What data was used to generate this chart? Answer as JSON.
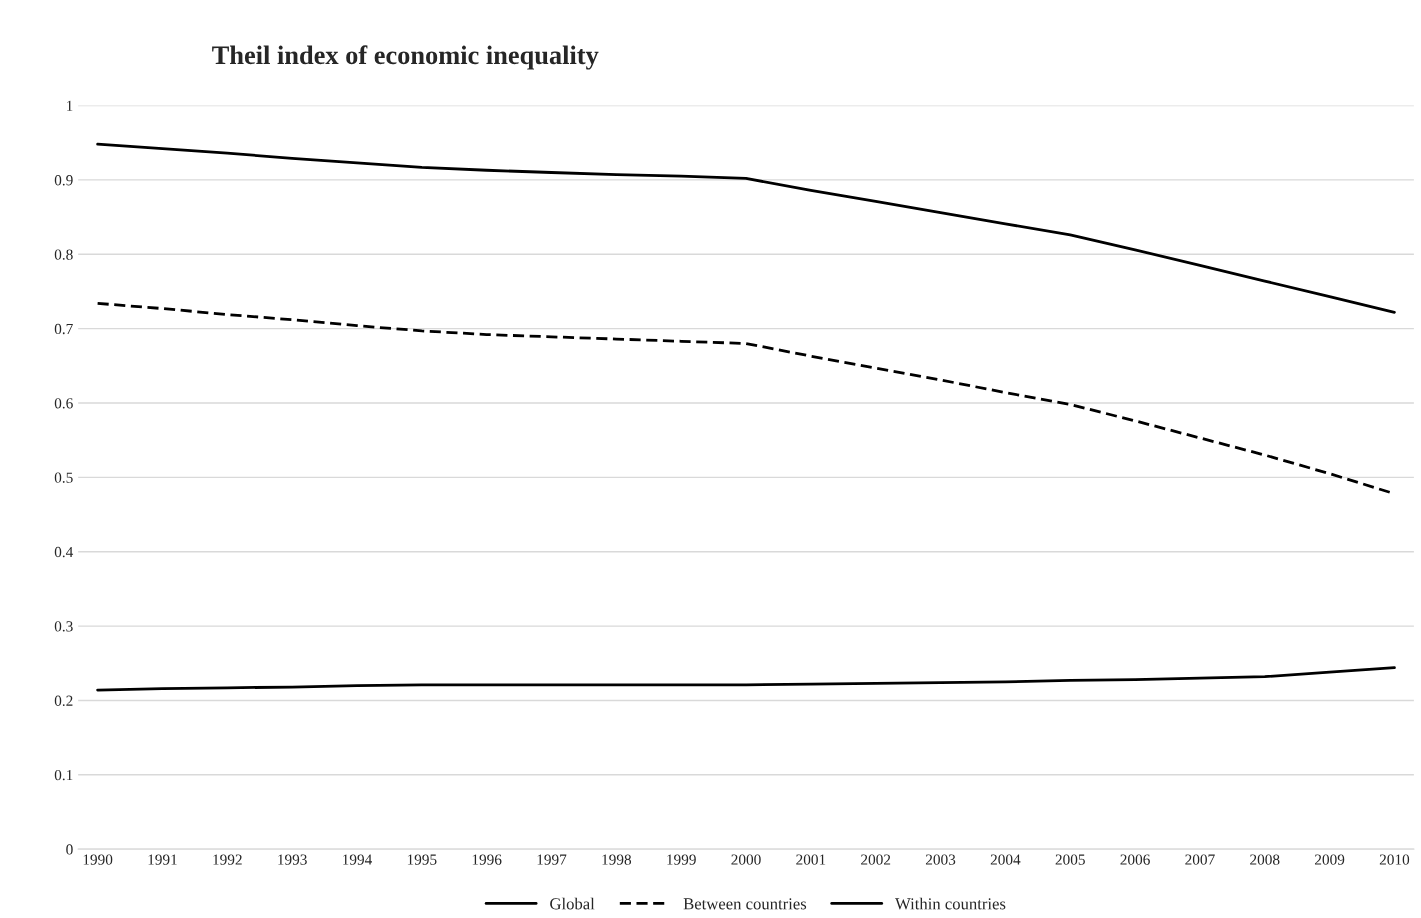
{
  "chart_data": {
    "type": "line",
    "title": "Theil index of economic inequality",
    "categories": [
      "1990",
      "1991",
      "1992",
      "1993",
      "1994",
      "1995",
      "1996",
      "1997",
      "1998",
      "1999",
      "2000",
      "2001",
      "2002",
      "2003",
      "2004",
      "2005",
      "2006",
      "2007",
      "2008",
      "2009",
      "2010"
    ],
    "series": [
      {
        "name": "Global",
        "color": "#000000",
        "line_style": "solid",
        "values": [
          0.948,
          0.942,
          0.936,
          0.929,
          0.923,
          0.917,
          0.913,
          0.91,
          0.907,
          0.905,
          0.902,
          0.886,
          0.871,
          0.856,
          0.841,
          0.826,
          0.806,
          0.785,
          0.764,
          0.743,
          0.722
        ]
      },
      {
        "name": "Between countries",
        "color": "#000000",
        "line_style": "dashed",
        "values": [
          0.734,
          0.727,
          0.719,
          0.712,
          0.704,
          0.697,
          0.692,
          0.689,
          0.686,
          0.683,
          0.68,
          0.663,
          0.647,
          0.631,
          0.614,
          0.598,
          0.576,
          0.553,
          0.53,
          0.505,
          0.478
        ]
      },
      {
        "name": "Within countries",
        "color": "#000000",
        "line_style": "solid",
        "values": [
          0.214,
          0.216,
          0.217,
          0.218,
          0.22,
          0.221,
          0.221,
          0.221,
          0.221,
          0.221,
          0.221,
          0.222,
          0.223,
          0.224,
          0.225,
          0.227,
          0.228,
          0.23,
          0.232,
          0.238,
          0.244
        ]
      }
    ],
    "ylim": [
      0,
      1
    ],
    "yticks": [
      0,
      0.1,
      0.2,
      0.3,
      0.4,
      0.5,
      0.6,
      0.7,
      0.8,
      0.9,
      1
    ],
    "grid": "y",
    "legend": "bottom",
    "marker": "none"
  }
}
